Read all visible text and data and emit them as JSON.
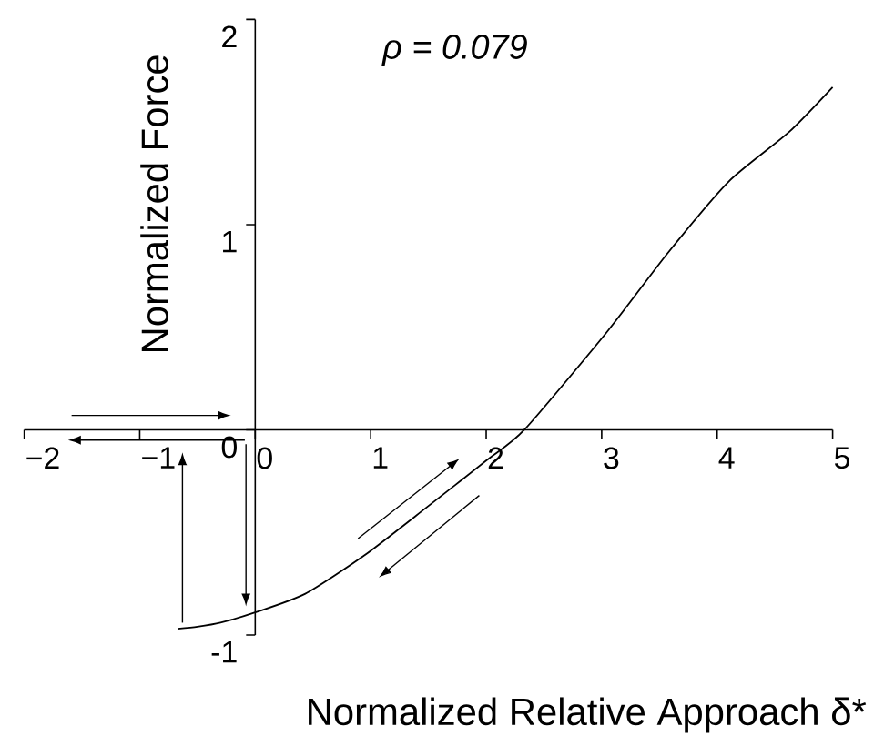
{
  "chart_data": {
    "type": "line",
    "xlabel": "Normalized Relative Approach δ*",
    "ylabel": "Normalized Force",
    "annotations": [
      "ρ = 0.079"
    ],
    "xlim": [
      -2,
      5
    ],
    "ylim": [
      -1,
      2
    ],
    "xticks": [
      {
        "value": -2,
        "label": "−2"
      },
      {
        "value": -1,
        "label": "−1"
      },
      0,
      1,
      2,
      3,
      4,
      5
    ],
    "yticks": [
      {
        "value": -1,
        "label": "-1"
      },
      0,
      1,
      2
    ],
    "marker": "none",
    "line_style": "solid",
    "series": [
      {
        "color": "#000000",
        "x": [
          -0.67,
          -0.5,
          -0.3,
          0,
          0.43,
          0.95,
          1.48,
          2.0,
          2.33,
          3.05,
          3.57,
          4.1,
          4.62,
          5.0
        ],
        "values": [
          -0.97,
          -0.96,
          -0.94,
          -0.89,
          -0.8,
          -0.61,
          -0.38,
          -0.15,
          0,
          0.48,
          0.86,
          1.21,
          1.45,
          1.67
        ]
      }
    ]
  }
}
